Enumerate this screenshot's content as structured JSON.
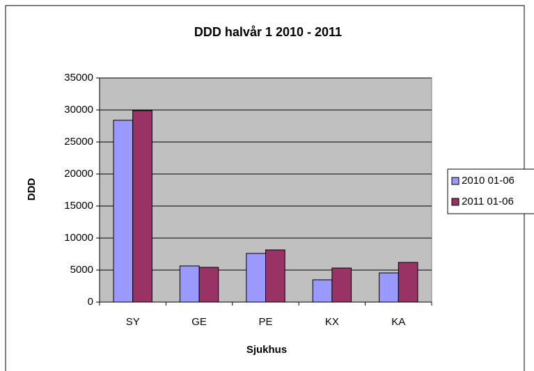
{
  "chart_data": {
    "type": "bar",
    "title": "DDD halvår 1 2010 - 2011",
    "x_label": "Sjukhus",
    "y_label": "DDD",
    "categories": [
      "SY",
      "GE",
      "PE",
      "KX",
      "KA"
    ],
    "series": [
      {
        "name": "2010 01-06",
        "color": "#9999ff",
        "values": [
          28400,
          5650,
          7600,
          3480,
          4560
        ]
      },
      {
        "name": "2011 01-06",
        "color": "#993366",
        "values": [
          29900,
          5430,
          8150,
          5320,
          6200
        ]
      }
    ],
    "ylim": [
      0,
      35000
    ],
    "yticks": [
      0,
      5000,
      10000,
      15000,
      20000,
      25000,
      30000,
      35000
    ],
    "grid": true,
    "legend": "right",
    "plot_background": "#c0c0c0"
  }
}
